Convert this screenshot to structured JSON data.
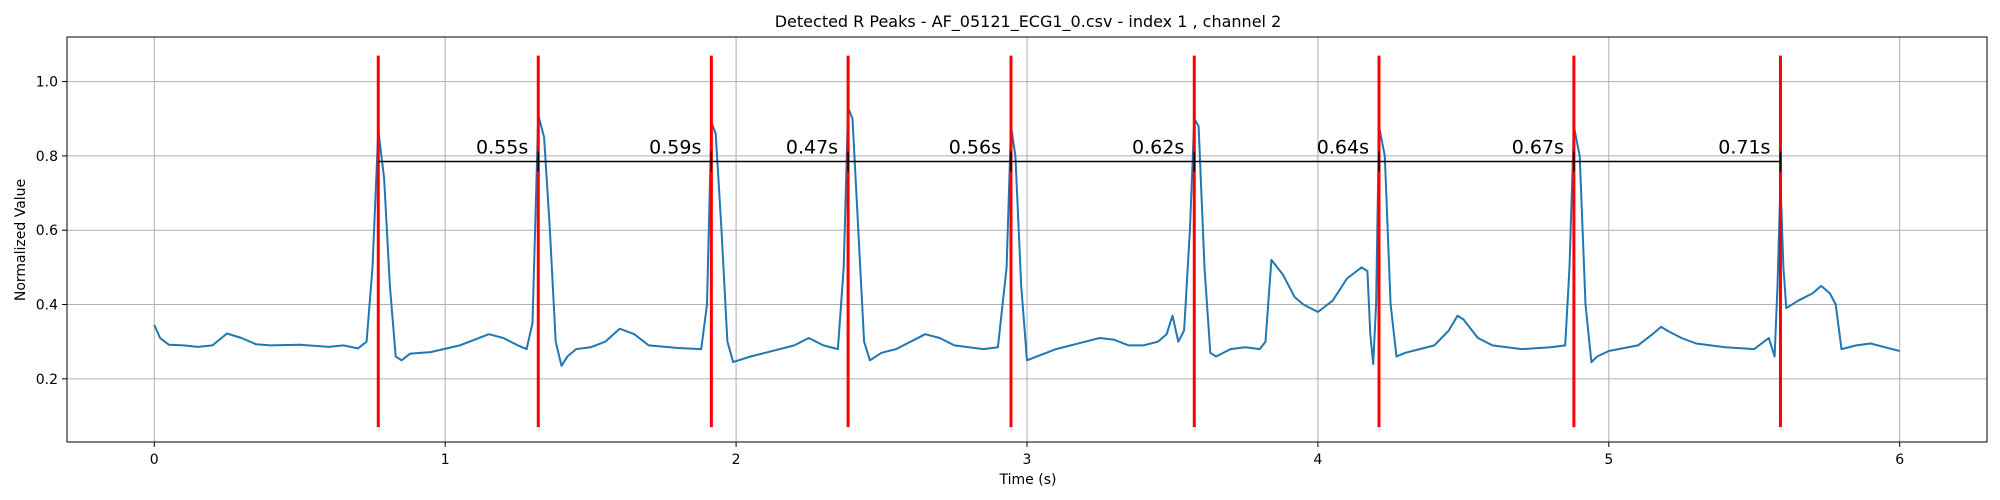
{
  "chart_data": {
    "type": "line",
    "title": "Detected R Peaks - AF_05121_ECG1_0.csv - index 1 , channel 2",
    "xlabel": "Time (s)",
    "ylabel": "Normalized Value",
    "xlim": [
      -0.3,
      6.3
    ],
    "ylim": [
      0.03,
      1.12
    ],
    "x_ticks": [
      "0",
      "1",
      "2",
      "3",
      "4",
      "5",
      "6"
    ],
    "y_ticks": [
      "0.2",
      "0.4",
      "0.6",
      "0.8",
      "1.0"
    ],
    "grid": true,
    "colors": {
      "signal": "#1f77b4",
      "peak": "#ff0000",
      "interval": "#000000"
    },
    "peak_line_range": [
      0.07,
      1.07
    ],
    "interval_line_y": 0.785,
    "r_peaks": [
      0.77,
      1.32,
      1.915,
      2.385,
      2.945,
      3.575,
      4.21,
      4.88,
      5.59
    ],
    "rr_intervals": [
      "0.55s",
      "0.59s",
      "0.47s",
      "0.56s",
      "0.62s",
      "0.64s",
      "0.67s",
      "0.71s"
    ],
    "series": [
      {
        "values": [
          [
            0.0,
            0.345
          ],
          [
            0.02,
            0.31
          ],
          [
            0.05,
            0.292
          ],
          [
            0.1,
            0.29
          ],
          [
            0.15,
            0.286
          ],
          [
            0.2,
            0.29
          ],
          [
            0.25,
            0.322
          ],
          [
            0.3,
            0.31
          ],
          [
            0.35,
            0.293
          ],
          [
            0.4,
            0.29
          ],
          [
            0.5,
            0.292
          ],
          [
            0.6,
            0.286
          ],
          [
            0.65,
            0.29
          ],
          [
            0.7,
            0.282
          ],
          [
            0.73,
            0.3
          ],
          [
            0.75,
            0.5
          ],
          [
            0.77,
            0.87
          ],
          [
            0.79,
            0.74
          ],
          [
            0.81,
            0.45
          ],
          [
            0.83,
            0.26
          ],
          [
            0.85,
            0.25
          ],
          [
            0.88,
            0.268
          ],
          [
            0.95,
            0.272
          ],
          [
            1.05,
            0.29
          ],
          [
            1.1,
            0.305
          ],
          [
            1.15,
            0.32
          ],
          [
            1.2,
            0.31
          ],
          [
            1.25,
            0.29
          ],
          [
            1.28,
            0.28
          ],
          [
            1.3,
            0.35
          ],
          [
            1.32,
            0.91
          ],
          [
            1.34,
            0.85
          ],
          [
            1.36,
            0.6
          ],
          [
            1.38,
            0.3
          ],
          [
            1.4,
            0.235
          ],
          [
            1.42,
            0.26
          ],
          [
            1.45,
            0.28
          ],
          [
            1.5,
            0.285
          ],
          [
            1.55,
            0.3
          ],
          [
            1.6,
            0.335
          ],
          [
            1.65,
            0.32
          ],
          [
            1.7,
            0.29
          ],
          [
            1.8,
            0.283
          ],
          [
            1.88,
            0.28
          ],
          [
            1.9,
            0.4
          ],
          [
            1.915,
            0.89
          ],
          [
            1.93,
            0.86
          ],
          [
            1.95,
            0.6
          ],
          [
            1.97,
            0.3
          ],
          [
            1.99,
            0.245
          ],
          [
            2.05,
            0.26
          ],
          [
            2.1,
            0.27
          ],
          [
            2.2,
            0.29
          ],
          [
            2.25,
            0.31
          ],
          [
            2.3,
            0.29
          ],
          [
            2.35,
            0.28
          ],
          [
            2.37,
            0.5
          ],
          [
            2.385,
            0.93
          ],
          [
            2.4,
            0.9
          ],
          [
            2.42,
            0.6
          ],
          [
            2.44,
            0.3
          ],
          [
            2.46,
            0.25
          ],
          [
            2.5,
            0.27
          ],
          [
            2.55,
            0.28
          ],
          [
            2.6,
            0.3
          ],
          [
            2.65,
            0.32
          ],
          [
            2.7,
            0.31
          ],
          [
            2.75,
            0.29
          ],
          [
            2.85,
            0.28
          ],
          [
            2.9,
            0.285
          ],
          [
            2.93,
            0.5
          ],
          [
            2.945,
            0.88
          ],
          [
            2.96,
            0.8
          ],
          [
            2.98,
            0.45
          ],
          [
            3.0,
            0.25
          ],
          [
            3.05,
            0.265
          ],
          [
            3.1,
            0.28
          ],
          [
            3.2,
            0.3
          ],
          [
            3.25,
            0.31
          ],
          [
            3.3,
            0.305
          ],
          [
            3.35,
            0.29
          ],
          [
            3.4,
            0.29
          ],
          [
            3.45,
            0.3
          ],
          [
            3.48,
            0.32
          ],
          [
            3.5,
            0.37
          ],
          [
            3.52,
            0.3
          ],
          [
            3.54,
            0.33
          ],
          [
            3.56,
            0.6
          ],
          [
            3.575,
            0.9
          ],
          [
            3.59,
            0.88
          ],
          [
            3.61,
            0.5
          ],
          [
            3.63,
            0.27
          ],
          [
            3.65,
            0.26
          ],
          [
            3.7,
            0.28
          ],
          [
            3.75,
            0.285
          ],
          [
            3.8,
            0.28
          ],
          [
            3.82,
            0.3
          ],
          [
            3.84,
            0.52
          ],
          [
            3.86,
            0.5
          ],
          [
            3.88,
            0.48
          ],
          [
            3.9,
            0.45
          ],
          [
            3.92,
            0.42
          ],
          [
            3.95,
            0.4
          ],
          [
            4.0,
            0.38
          ],
          [
            4.05,
            0.41
          ],
          [
            4.1,
            0.47
          ],
          [
            4.15,
            0.5
          ],
          [
            4.17,
            0.49
          ],
          [
            4.18,
            0.32
          ],
          [
            4.19,
            0.24
          ],
          [
            4.2,
            0.4
          ],
          [
            4.21,
            0.88
          ],
          [
            4.23,
            0.8
          ],
          [
            4.25,
            0.4
          ],
          [
            4.27,
            0.26
          ],
          [
            4.3,
            0.27
          ],
          [
            4.35,
            0.28
          ],
          [
            4.4,
            0.29
          ],
          [
            4.45,
            0.33
          ],
          [
            4.48,
            0.37
          ],
          [
            4.5,
            0.36
          ],
          [
            4.55,
            0.31
          ],
          [
            4.6,
            0.29
          ],
          [
            4.7,
            0.28
          ],
          [
            4.8,
            0.285
          ],
          [
            4.85,
            0.29
          ],
          [
            4.865,
            0.5
          ],
          [
            4.88,
            0.88
          ],
          [
            4.9,
            0.8
          ],
          [
            4.92,
            0.4
          ],
          [
            4.94,
            0.245
          ],
          [
            4.96,
            0.26
          ],
          [
            5.0,
            0.275
          ],
          [
            5.1,
            0.29
          ],
          [
            5.15,
            0.32
          ],
          [
            5.18,
            0.34
          ],
          [
            5.2,
            0.33
          ],
          [
            5.25,
            0.31
          ],
          [
            5.3,
            0.295
          ],
          [
            5.4,
            0.285
          ],
          [
            5.5,
            0.28
          ],
          [
            5.55,
            0.31
          ],
          [
            5.57,
            0.26
          ],
          [
            5.58,
            0.45
          ],
          [
            5.59,
            0.73
          ],
          [
            5.6,
            0.5
          ],
          [
            5.61,
            0.39
          ],
          [
            5.65,
            0.41
          ],
          [
            5.7,
            0.43
          ],
          [
            5.73,
            0.45
          ],
          [
            5.76,
            0.43
          ],
          [
            5.78,
            0.4
          ],
          [
            5.8,
            0.28
          ],
          [
            5.85,
            0.29
          ],
          [
            5.9,
            0.295
          ],
          [
            5.95,
            0.285
          ],
          [
            6.0,
            0.275
          ]
        ]
      }
    ]
  }
}
